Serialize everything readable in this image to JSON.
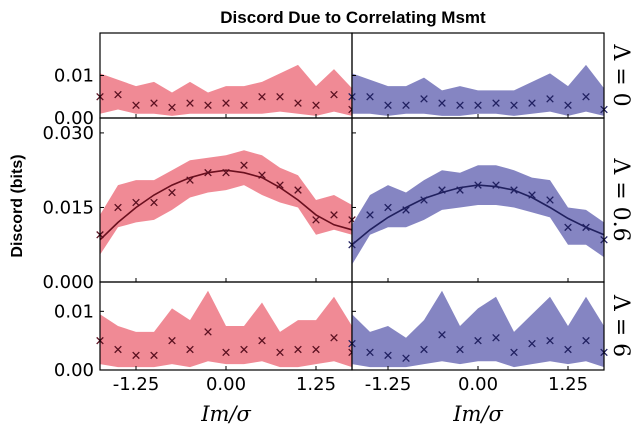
{
  "chart_data": {
    "type": "scatter",
    "title": "Discord Due to Correlating Msmt",
    "ylabel": "Discord (bits)",
    "xlabel": "I_m/σ",
    "xlabel_display": "Im/σ",
    "xlim": [
      -1.75,
      1.75
    ],
    "x_ticks": [
      "-1.25",
      "0.00",
      "1.25"
    ],
    "x_tick_values": [
      -1.25,
      0.0,
      1.25
    ],
    "x": [
      -1.75,
      -1.5,
      -1.25,
      -1.0,
      -0.75,
      -0.5,
      -0.25,
      0.0,
      0.25,
      0.5,
      0.75,
      1.0,
      1.25,
      1.5,
      1.75
    ],
    "colors": {
      "left_fill": "#f08a95",
      "left_marker": "#5a1020",
      "left_curve": "#6a0f1e",
      "right_fill": "#8585c2",
      "right_marker": "#202060",
      "right_curve": "#20205e"
    },
    "rows": [
      {
        "label": "Λ = 0",
        "ylim": [
          0,
          0.02
        ],
        "y_ticks": [
          "0.00",
          "0.01"
        ],
        "y_tick_values": [
          0,
          0.01
        ],
        "panels": [
          {
            "values": [
              0.005,
              0.0055,
              0.003,
              0.0035,
              0.0025,
              0.0035,
              0.003,
              0.0035,
              0.003,
              0.005,
              0.005,
              0.0035,
              0.003,
              0.0055,
              0.002
            ],
            "band_low": [
              0.001,
              0.002,
              0.001,
              0.001,
              0.0005,
              0.001,
              0.001,
              0.001,
              0.001,
              0.001,
              0.0015,
              0.001,
              0.0005,
              0.0015,
              0.0005
            ],
            "band_high": [
              0.0105,
              0.009,
              0.0075,
              0.0085,
              0.006,
              0.0085,
              0.006,
              0.0075,
              0.0075,
              0.0085,
              0.0105,
              0.0125,
              0.0075,
              0.0115,
              0.007
            ]
          },
          {
            "values": [
              0.005,
              0.005,
              0.003,
              0.003,
              0.0045,
              0.0035,
              0.003,
              0.003,
              0.0035,
              0.003,
              0.0035,
              0.0045,
              0.003,
              0.005,
              0.002
            ],
            "band_low": [
              0.001,
              0.001,
              0.0005,
              0.001,
              0.001,
              0.0005,
              0.0005,
              0.001,
              0.001,
              0.0005,
              0.001,
              0.0015,
              0.0005,
              0.0015,
              0.0005
            ],
            "band_high": [
              0.0105,
              0.009,
              0.0075,
              0.0075,
              0.0095,
              0.0065,
              0.0075,
              0.0065,
              0.0065,
              0.0065,
              0.0085,
              0.0105,
              0.0075,
              0.0125,
              0.007
            ]
          }
        ]
      },
      {
        "label": "Λ = 0.6",
        "ylim": [
          0,
          0.033
        ],
        "y_ticks": [
          "0.000",
          "0.015",
          "0.030"
        ],
        "y_tick_values": [
          0,
          0.015,
          0.03
        ],
        "panels": [
          {
            "values": [
              0.0095,
              0.015,
              0.016,
              0.016,
              0.018,
              0.0205,
              0.022,
              0.022,
              0.0235,
              0.0215,
              0.0195,
              0.0185,
              0.0125,
              0.0135,
              0.0125
            ],
            "curve": [
              0.0085,
              0.012,
              0.015,
              0.0175,
              0.0195,
              0.021,
              0.022,
              0.0225,
              0.022,
              0.021,
              0.019,
              0.0165,
              0.0135,
              0.0115,
              0.0105
            ],
            "band_low": [
              0.0055,
              0.011,
              0.012,
              0.0125,
              0.0145,
              0.017,
              0.018,
              0.0185,
              0.0195,
              0.0175,
              0.016,
              0.015,
              0.0095,
              0.0105,
              0.0095
            ],
            "band_high": [
              0.0135,
              0.0195,
              0.0205,
              0.0205,
              0.0225,
              0.0245,
              0.025,
              0.0255,
              0.0265,
              0.0255,
              0.023,
              0.0215,
              0.0165,
              0.0175,
              0.0155
            ]
          },
          {
            "values": [
              0.0075,
              0.0135,
              0.015,
              0.0145,
              0.0165,
              0.0185,
              0.0185,
              0.0195,
              0.0195,
              0.0185,
              0.0175,
              0.0165,
              0.011,
              0.011,
              0.0085
            ],
            "curve": [
              0.0075,
              0.0105,
              0.013,
              0.015,
              0.0168,
              0.018,
              0.019,
              0.0195,
              0.0192,
              0.0185,
              0.017,
              0.015,
              0.0128,
              0.011,
              0.0095
            ],
            "band_low": [
              0.0035,
              0.0095,
              0.011,
              0.011,
              0.0125,
              0.0145,
              0.015,
              0.0155,
              0.0155,
              0.015,
              0.014,
              0.013,
              0.0075,
              0.0075,
              0.005
            ],
            "band_high": [
              0.0115,
              0.0175,
              0.0195,
              0.018,
              0.0205,
              0.0225,
              0.022,
              0.0235,
              0.0235,
              0.0225,
              0.021,
              0.0205,
              0.015,
              0.0145,
              0.012
            ]
          }
        ]
      },
      {
        "label": "Λ = 6",
        "ylim": [
          0,
          0.015
        ],
        "y_ticks": [
          "0.00",
          "0.01"
        ],
        "y_tick_values": [
          0,
          0.01
        ],
        "panels": [
          {
            "values": [
              0.005,
              0.0035,
              0.0025,
              0.0025,
              0.005,
              0.0035,
              0.0065,
              0.003,
              0.0035,
              0.005,
              0.003,
              0.0035,
              0.0035,
              0.0055,
              0.003
            ],
            "band_low": [
              0.001,
              0.0005,
              0.0005,
              0.0005,
              0.001,
              0.0005,
              0.0015,
              0.001,
              0.001,
              0.0015,
              0.0005,
              0.0005,
              0.001,
              0.0015,
              0.0005
            ],
            "band_high": [
              0.0095,
              0.0075,
              0.0065,
              0.0065,
              0.0105,
              0.0085,
              0.0135,
              0.0075,
              0.0075,
              0.0115,
              0.0065,
              0.0085,
              0.0085,
              0.0125,
              0.0075
            ]
          },
          {
            "values": [
              0.0045,
              0.003,
              0.0025,
              0.002,
              0.0035,
              0.006,
              0.0035,
              0.005,
              0.0055,
              0.003,
              0.0045,
              0.005,
              0.0035,
              0.005,
              0.003
            ],
            "band_low": [
              0.001,
              0.0005,
              0.0005,
              0.0005,
              0.001,
              0.0015,
              0.001,
              0.0015,
              0.0015,
              0.0005,
              0.001,
              0.0015,
              0.001,
              0.0015,
              0.0005
            ],
            "band_high": [
              0.0095,
              0.0065,
              0.0075,
              0.0055,
              0.0085,
              0.0135,
              0.0075,
              0.0105,
              0.0125,
              0.0065,
              0.0095,
              0.0125,
              0.0075,
              0.0125,
              0.0075
            ]
          }
        ]
      }
    ]
  }
}
